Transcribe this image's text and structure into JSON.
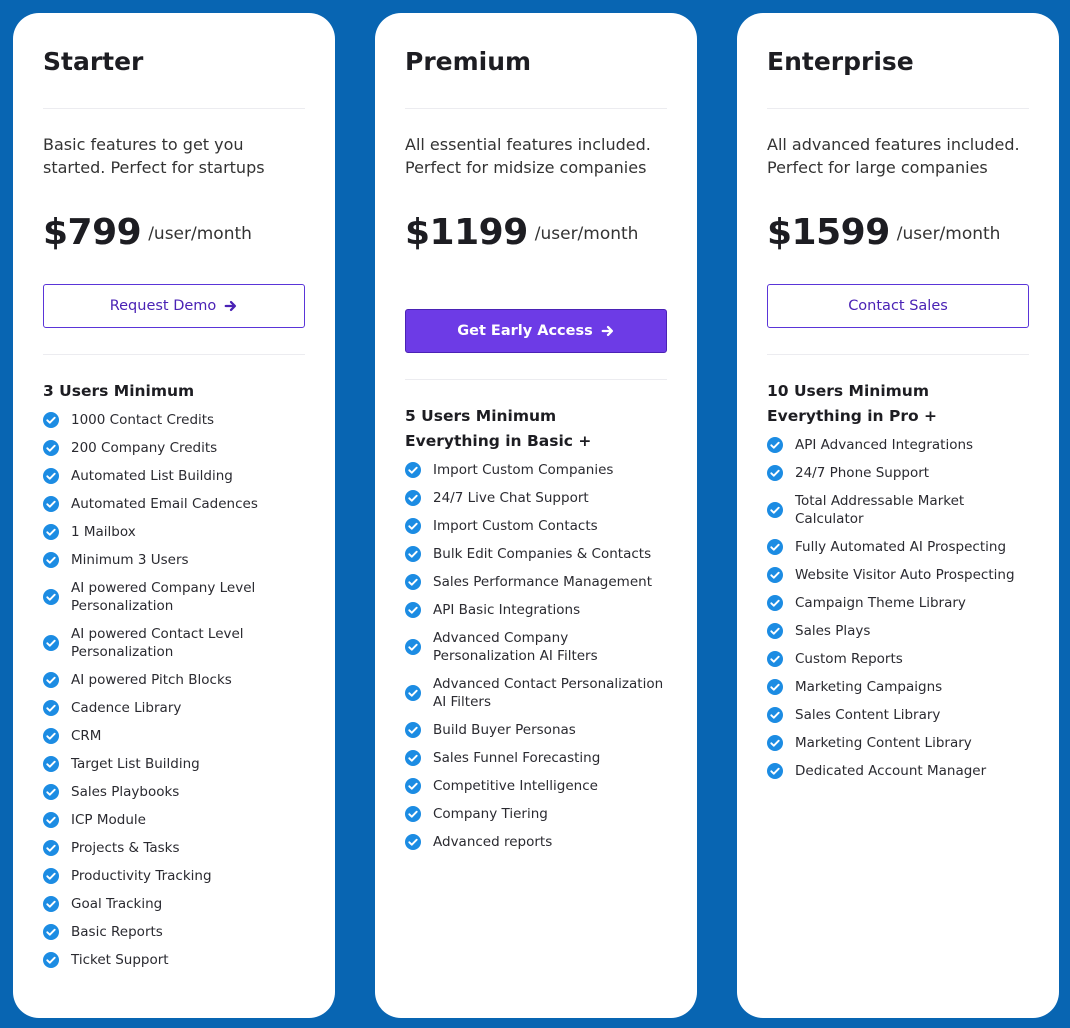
{
  "plans": [
    {
      "name": "Starter",
      "description": [
        "Basic features to get you",
        "started. Perfect for startups"
      ],
      "price": "$799",
      "period": "/user/month",
      "button": "Request Demo",
      "button_style": "outline",
      "button_arrow": true,
      "minimum": [
        "3 Users Minimum"
      ],
      "features": [
        "1000 Contact Credits",
        "200 Company Credits",
        "Automated List Building",
        "Automated Email Cadences",
        "1 Mailbox",
        "Minimum 3 Users",
        "AI powered Company Level Personalization",
        "AI powered Contact Level Personalization",
        "AI powered Pitch Blocks",
        "Cadence Library",
        "CRM",
        "Target List Building",
        "Sales Playbooks",
        "ICP Module",
        "Projects & Tasks",
        "Productivity Tracking",
        "Goal Tracking",
        "Basic Reports",
        "Ticket Support"
      ]
    },
    {
      "name": "Premium",
      "description": [
        "All essential features included.",
        "Perfect for midsize companies"
      ],
      "price": "$1199",
      "period": "/user/month",
      "button": "Get Early Access",
      "button_style": "filled",
      "button_arrow": true,
      "minimum": [
        "5  Users Minimum",
        "Everything in Basic +"
      ],
      "features": [
        "Import Custom Companies",
        "24/7 Live Chat Support",
        "Import Custom Contacts",
        "Bulk Edit Companies & Contacts",
        "Sales Performance Management",
        "API Basic Integrations",
        "Advanced Company Personalization AI Filters",
        "Advanced Contact Personalization AI Filters",
        "Build Buyer Personas",
        "Sales Funnel Forecasting",
        "Competitive Intelligence",
        "Company Tiering",
        "Advanced reports"
      ]
    },
    {
      "name": "Enterprise",
      "description": [
        "All advanced features included.",
        "Perfect for large companies"
      ],
      "price": "$1599",
      "period": "/user/month",
      "button": "Contact Sales",
      "button_style": "outline",
      "button_arrow": false,
      "minimum": [
        "10 Users Minimum",
        "Everything in Pro +"
      ],
      "features": [
        "API Advanced Integrations",
        "24/7 Phone Support",
        "Total Addressable Market Calculator",
        "Fully Automated AI Prospecting",
        "Website Visitor Auto Prospecting",
        "Campaign Theme Library",
        "Sales Plays",
        "Custom Reports",
        "Marketing Campaigns",
        "Sales Content Library",
        "Marketing Content Library",
        "Dedicated Account Manager"
      ]
    }
  ]
}
